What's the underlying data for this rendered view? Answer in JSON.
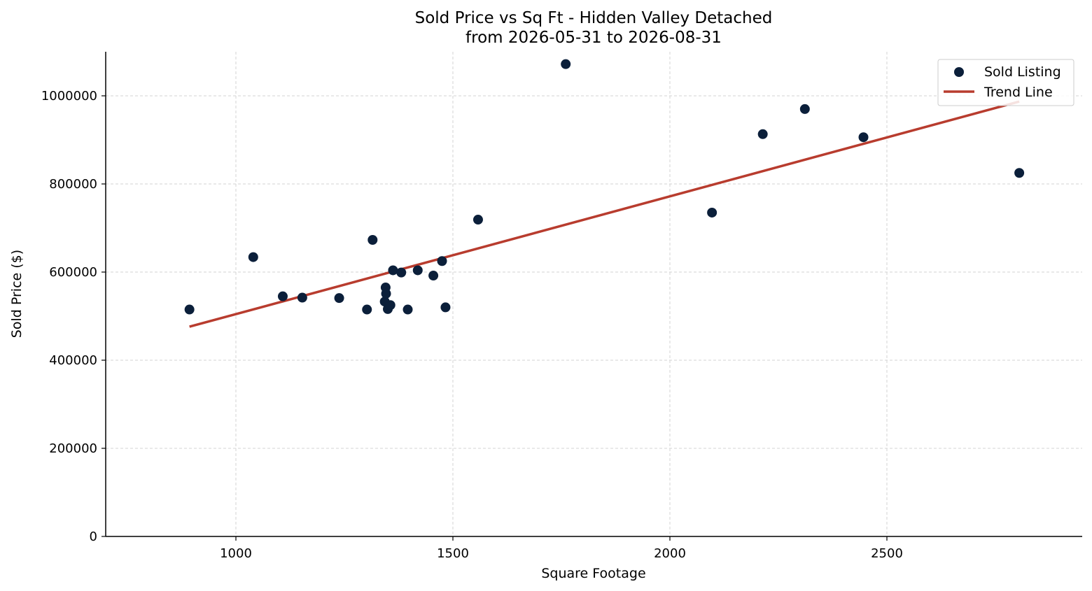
{
  "chart_data": {
    "type": "scatter",
    "title": "Sold Price vs Sq Ft - Hidden Valley Detached",
    "subtitle": "from 2026-05-31 to 2026-08-31",
    "xlabel": "Square Footage",
    "ylabel": "Sold Price ($)",
    "xlim": [
      700,
      2950
    ],
    "ylim": [
      0,
      1100000
    ],
    "xticks": [
      1000,
      1500,
      2000,
      2500
    ],
    "yticks": [
      0,
      200000,
      400000,
      600000,
      800000,
      1000000
    ],
    "grid": true,
    "legend_position": "top-right",
    "colors": {
      "points": "#0b1f3a",
      "trend": "#b83c2e"
    },
    "series": [
      {
        "name": "Sold Listing",
        "kind": "scatter",
        "points": [
          [
            893,
            515000
          ],
          [
            1040,
            634000
          ],
          [
            1108,
            545000
          ],
          [
            1153,
            542000
          ],
          [
            1238,
            541000
          ],
          [
            1302,
            515000
          ],
          [
            1315,
            673000
          ],
          [
            1343,
            533000
          ],
          [
            1345,
            565000
          ],
          [
            1346,
            551000
          ],
          [
            1350,
            516000
          ],
          [
            1356,
            525000
          ],
          [
            1362,
            604000
          ],
          [
            1381,
            599000
          ],
          [
            1396,
            515000
          ],
          [
            1419,
            604000
          ],
          [
            1455,
            592000
          ],
          [
            1475,
            625000
          ],
          [
            1483,
            520000
          ],
          [
            1558,
            719000
          ],
          [
            1760,
            1072000
          ],
          [
            2097,
            735000
          ],
          [
            2214,
            913000
          ],
          [
            2311,
            970000
          ],
          [
            2446,
            906000
          ],
          [
            2805,
            825000
          ]
        ]
      },
      {
        "name": "Trend Line",
        "kind": "line",
        "points": [
          [
            893,
            476000
          ],
          [
            2805,
            987000
          ]
        ]
      }
    ]
  }
}
